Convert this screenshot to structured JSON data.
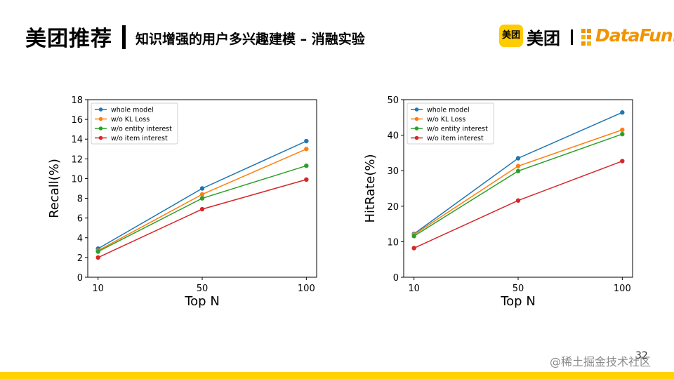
{
  "header": {
    "brand": "美团推荐",
    "title": "知识增强的用户多兴趣建模 – 消融实验"
  },
  "logos": {
    "meituan_badge": "美团",
    "meituan_text": "美团",
    "datafun_text": "DataFun."
  },
  "colors": {
    "brand_yellow": "#ffd200",
    "series_blue": "#1f77b4",
    "series_orange": "#ff7f0e",
    "series_green": "#2ca02c",
    "series_red": "#d62728"
  },
  "chart_data": [
    {
      "type": "line",
      "title": "",
      "xlabel": "Top N",
      "ylabel": "Recall(%)",
      "x": [
        "10",
        "50",
        "100"
      ],
      "ylim": [
        0,
        18
      ],
      "yticks": [
        "0",
        "2",
        "4",
        "6",
        "8",
        "10",
        "12",
        "14",
        "16",
        "18"
      ],
      "legend_position": "top-left",
      "series": [
        {
          "name": "whole model",
          "color": "#1f77b4",
          "values": [
            2.9,
            9.0,
            13.8
          ]
        },
        {
          "name": "w/o KL Loss",
          "color": "#ff7f0e",
          "values": [
            2.7,
            8.4,
            13.0
          ]
        },
        {
          "name": "w/o entity interest",
          "color": "#2ca02c",
          "values": [
            2.6,
            8.0,
            11.3
          ]
        },
        {
          "name": "w/o item interest",
          "color": "#d62728",
          "values": [
            2.0,
            6.9,
            9.9
          ]
        }
      ]
    },
    {
      "type": "line",
      "title": "",
      "xlabel": "Top N",
      "ylabel": "HitRate(%)",
      "x": [
        "10",
        "50",
        "100"
      ],
      "ylim": [
        0,
        50
      ],
      "yticks": [
        "0",
        "10",
        "20",
        "30",
        "40",
        "50"
      ],
      "legend_position": "top-left",
      "series": [
        {
          "name": "whole model",
          "color": "#1f77b4",
          "values": [
            12.2,
            33.5,
            46.4
          ]
        },
        {
          "name": "w/o KL Loss",
          "color": "#ff7f0e",
          "values": [
            12.0,
            31.3,
            41.5
          ]
        },
        {
          "name": "w/o entity interest",
          "color": "#2ca02c",
          "values": [
            11.6,
            29.9,
            40.3
          ]
        },
        {
          "name": "w/o item interest",
          "color": "#d62728",
          "values": [
            8.2,
            21.6,
            32.7
          ]
        }
      ]
    }
  ],
  "footer": {
    "page_number": "32",
    "watermark": "@稀土掘金技术社区"
  }
}
